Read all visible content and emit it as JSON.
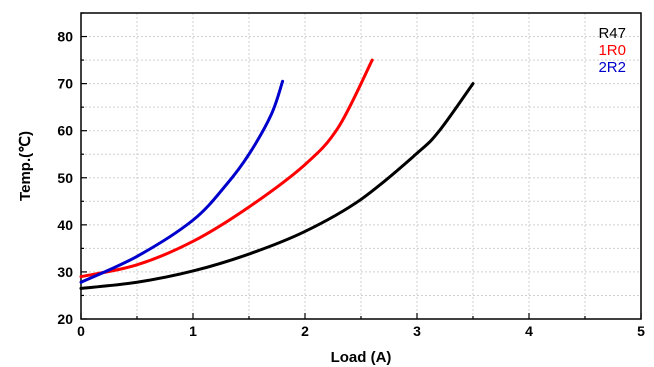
{
  "chart_data": {
    "type": "line",
    "title": "",
    "xlabel": "Load (A)",
    "ylabel": "Temp.(℃)",
    "xlim": [
      0,
      5
    ],
    "ylim": [
      20,
      85
    ],
    "xticks": [
      0,
      1,
      2,
      3,
      4,
      5
    ],
    "yticks": [
      20,
      30,
      40,
      50,
      60,
      70,
      80
    ],
    "grid": true,
    "legend_position": "top-right",
    "series": [
      {
        "name": "R47",
        "color": "#000000",
        "x": [
          0,
          0.5,
          1.0,
          1.5,
          2.0,
          2.5,
          3.0,
          3.2,
          3.5
        ],
        "y": [
          26.5,
          27.8,
          30.2,
          33.8,
          38.6,
          45.4,
          55.2,
          60.0,
          70.0
        ]
      },
      {
        "name": "1R0",
        "color": "#ff0000",
        "x": [
          0,
          0.5,
          1.0,
          1.5,
          2.0,
          2.3,
          2.6
        ],
        "y": [
          29.0,
          31.5,
          36.5,
          43.8,
          52.8,
          60.8,
          75.0
        ]
      },
      {
        "name": "2R2",
        "color": "#0000cc",
        "x": [
          0,
          0.5,
          1.0,
          1.3,
          1.5,
          1.7,
          1.8
        ],
        "y": [
          27.8,
          33.3,
          41.0,
          48.6,
          55.0,
          63.5,
          70.5
        ]
      }
    ]
  }
}
